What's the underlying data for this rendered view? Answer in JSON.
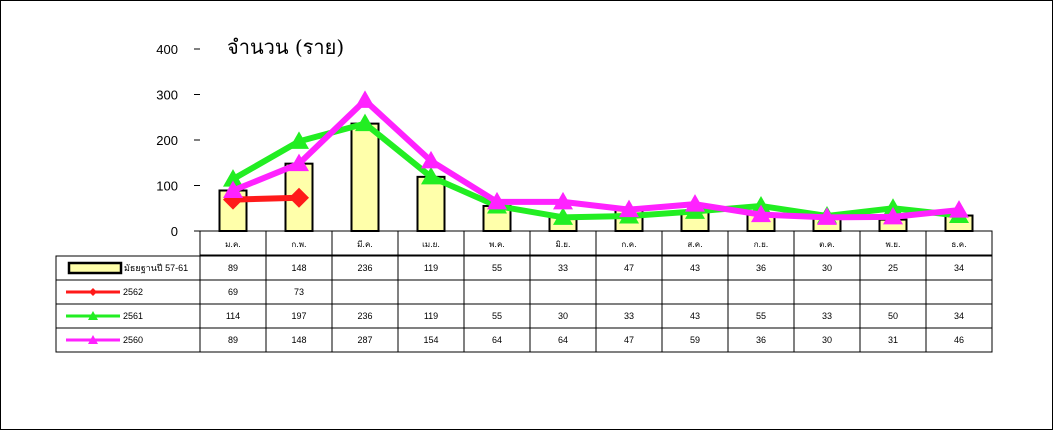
{
  "chart_data": {
    "type": "bar",
    "title": "จำนวน (ราย)",
    "ylim": [
      0,
      400
    ],
    "yticks": [
      "0",
      "100",
      "200",
      "300",
      "400"
    ],
    "categories": [
      "ม.ค.",
      "ก.พ.",
      "มี.ค.",
      "เม.ย.",
      "พ.ค.",
      "มิ.ย.",
      "ก.ค.",
      "ส.ค.",
      "ก.ย.",
      "ต.ค.",
      "พ.ย.",
      "ธ.ค."
    ],
    "series": [
      {
        "name": "มัธยฐานปี 57-61",
        "kind": "bar",
        "color": "#ffffaa",
        "marker": "",
        "values": [
          89,
          148,
          236,
          119,
          55,
          33,
          47,
          43,
          36,
          30,
          25,
          34
        ]
      },
      {
        "name": "2562",
        "kind": "line",
        "color": "#ff1a1a",
        "marker": "diamond",
        "values": [
          69,
          73,
          null,
          null,
          null,
          null,
          null,
          null,
          null,
          null,
          null,
          null
        ]
      },
      {
        "name": "2561",
        "kind": "line",
        "color": "#22ee22",
        "marker": "triangle",
        "values": [
          114,
          197,
          236,
          119,
          55,
          30,
          33,
          43,
          55,
          33,
          50,
          34
        ]
      },
      {
        "name": "2560",
        "kind": "line",
        "color": "#ff22ff",
        "marker": "triangle",
        "values": [
          89,
          148,
          287,
          154,
          64,
          64,
          47,
          59,
          36,
          30,
          31,
          46
        ]
      }
    ],
    "legend": "data-table-left",
    "grid": false
  }
}
